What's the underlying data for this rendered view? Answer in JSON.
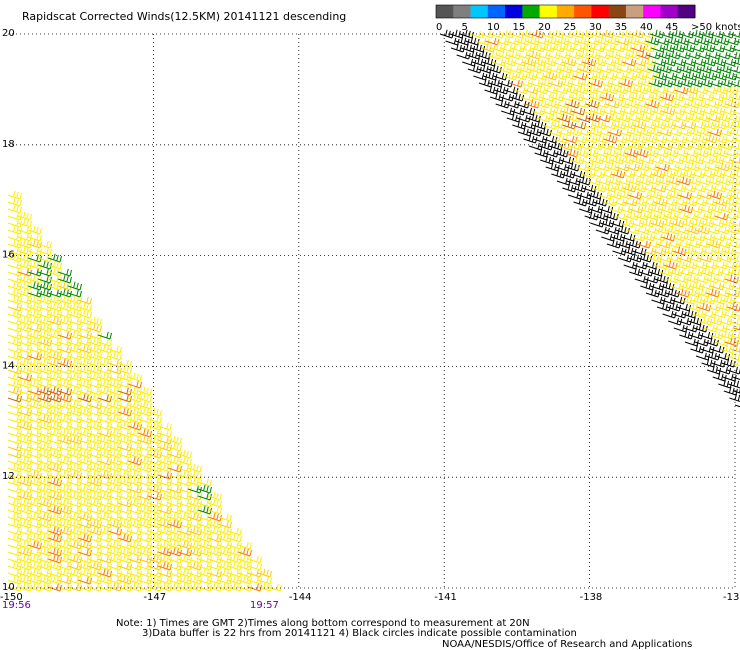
{
  "title": "Rapidscat Corrected Winds(12.5KM) 20141121 descending",
  "colorbar": {
    "labels": [
      "0",
      "5",
      "10",
      "15",
      "20",
      "25",
      "30",
      "35",
      "40",
      "45",
      ">50 knots"
    ],
    "colors": [
      "#555555",
      "#7f7f7f",
      "#00c8ff",
      "#0064ff",
      "#0000e0",
      "#00aa00",
      "#ffff00",
      "#ffaa00",
      "#ff5500",
      "#ff0000",
      "#8b4513",
      "#c8a080",
      "#ff00ff",
      "#a000c8",
      "#500080"
    ]
  },
  "map": {
    "lat_labels": [
      "20",
      "18",
      "16",
      "14",
      "12",
      "10"
    ],
    "lon_labels": [
      "-150",
      "-147",
      "-144",
      "-141",
      "-138",
      "-13"
    ],
    "lat_range": [
      10,
      20
    ],
    "lon_range": [
      -150,
      -135
    ],
    "gridlines": "dotted"
  },
  "times": {
    "start": "19:56",
    "end": "19:57"
  },
  "notes": [
    "Note: 1) Times are GMT 2)Times along bottom correspond to measurement at 20N",
    "3)Data buffer is 22 hrs from 20141121 4) Black circles indicate possible contamination",
    "NOAA/NESDIS/Office of Research and Applications"
  ]
}
